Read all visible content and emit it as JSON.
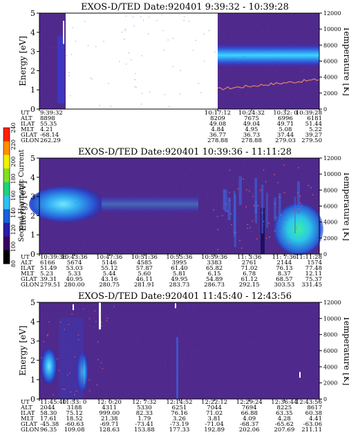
{
  "chart_data": [
    {
      "type": "heatmap",
      "title": "EXOS-D/TED   Date:920401   9:39:32 - 10:39:28",
      "ylabel": "Energy [eV]",
      "ylabel_right": "Temperature [K]",
      "ylim": [
        0,
        5
      ],
      "yticks": [
        "0",
        "1",
        "2",
        "3",
        "4",
        "5"
      ],
      "ylim_right": [
        0,
        12000
      ],
      "yticks_right": [
        "0",
        "2000",
        "4000",
        "6000",
        "8000",
        "10000",
        "12000"
      ],
      "data_gap": "white gap between 9:43 and 10:17 UT",
      "band_energy_ev": 2.8,
      "temperature_trace": [
        [
          10.285,
          2500
        ],
        [
          10.66,
          3700
        ]
      ],
      "ephemeris": {
        "row_labels": [
          "UT",
          "ALT",
          "ILAT",
          "MLT",
          "GLAT",
          "GLON"
        ],
        "columns": [
          [
            "9:39:32",
            "8898",
            "55.35",
            "4.21",
            "-68.14",
            "262.29"
          ],
          [
            "10:17:12",
            "8209",
            "49.08",
            "4.84",
            "36.77",
            "278.88"
          ],
          [
            "10:24:32",
            "7675",
            "49.04",
            "4.95",
            "36.73",
            "278.88"
          ],
          [
            "10:32: 0",
            "6996",
            "49.71",
            "5.08",
            "37.44",
            "279.03"
          ],
          [
            "10:39:28",
            "6181",
            "51.44",
            "5.22",
            "39.27",
            "279.50"
          ]
        ]
      }
    },
    {
      "type": "heatmap",
      "title": "EXOS-D/TED   Date:920401   10:39:36 - 11:11:28",
      "ylabel": "Energy [eV]",
      "ylabel_right": "Temperature [K]",
      "ylim": [
        0,
        5
      ],
      "yticks": [
        "0",
        "1",
        "2",
        "3",
        "4",
        "5"
      ],
      "ylim_right": [
        0,
        12000
      ],
      "yticks_right": [
        "0",
        "2000",
        "4000",
        "6000",
        "8000",
        "10000",
        "12000"
      ],
      "band_energy_ev": 2.6,
      "ephemeris": {
        "row_labels": [
          "UT",
          "ALT",
          "ILAT",
          "MLT",
          "GLAT",
          "GLON"
        ],
        "columns": [
          [
            "10:39:36",
            "6166",
            "51.49",
            "5.23",
            "39.31",
            "279.51"
          ],
          [
            "10:43:36",
            "5674",
            "53.03",
            "5.33",
            "40.95",
            "280.00"
          ],
          [
            "10:47:36",
            "5146",
            "55.12",
            "5.44",
            "43.16",
            "280.75"
          ],
          [
            "10:51:36",
            "4585",
            "57.87",
            "5.60",
            "46.11",
            "281.91"
          ],
          [
            "10:55:36",
            "3995",
            "61.40",
            "5.81",
            "49.95",
            "283.73"
          ],
          [
            "10:59:36",
            "3383",
            "65.82",
            "6.15",
            "54.89",
            "286.73"
          ],
          [
            "11: 3:36",
            "2761",
            "71.02",
            "6.78",
            "61.12",
            "292.15"
          ],
          [
            "11: 7:36",
            "2144",
            "76.13",
            "8.37",
            "68.57",
            "303.53"
          ],
          [
            "11:11:28",
            "1574",
            "77.48",
            "12.11",
            "75.37",
            "331.45"
          ]
        ]
      }
    },
    {
      "type": "heatmap",
      "title": "EXOS-D/TED   Date:920401   11:45:40 - 12:43:56",
      "ylabel": "Energy [eV]",
      "ylabel_right": "Temperature [K]",
      "ylim": [
        0,
        5
      ],
      "yticks": [
        "0",
        "1",
        "2",
        "3",
        "4",
        "5"
      ],
      "ylim_right": [
        0,
        12000
      ],
      "yticks_right": [
        "0",
        "2000",
        "4000",
        "6000",
        "8000",
        "10000",
        "12000"
      ],
      "ephemeris": {
        "row_labels": [
          "UT",
          "ALT",
          "ILAT",
          "MLT",
          "GLAT",
          "GLON"
        ],
        "columns": [
          [
            "11:45:40",
            "2044",
            "58.30",
            "17.61",
            "-45.38",
            "96.35"
          ],
          [
            "11:53: 0",
            "3188",
            "75.12",
            "18.52",
            "-60.63",
            "109.08"
          ],
          [
            "12: 0:20",
            "4311",
            "999.00",
            "21.38",
            "-69.71",
            "128.63"
          ],
          [
            "12: 7:32",
            "5330",
            "82.33",
            "1.79",
            "-73.41",
            "153.88"
          ],
          [
            "12:14:52",
            "6251",
            "76.16",
            "3.26",
            "-73.19",
            "177.33"
          ],
          [
            "12:22:12",
            "7044",
            "71.02",
            "3.81",
            "-71.04",
            "192.89"
          ],
          [
            "12:29:24",
            "7694",
            "66.88",
            "4.09",
            "-68.37",
            "202.06"
          ],
          [
            "12:36:44",
            "8225",
            "63.35",
            "4.28",
            "-65.62",
            "207.69"
          ],
          [
            "12:43:56",
            "8617",
            "60.38",
            "4.41",
            "-63.06",
            "211.11"
          ]
        ]
      }
    }
  ],
  "colorbar": {
    "label": "Second Harmonic Current",
    "ticks": [
      "80",
      "100",
      "120",
      "140",
      "160",
      "180",
      "200",
      "220",
      "240"
    ],
    "colors": [
      "#000000",
      "#3a0060",
      "#2a1aa8",
      "#1b5fd8",
      "#2fc0f0",
      "#1fd07a",
      "#7fe020",
      "#f0f000",
      "#ff9000",
      "#ff2000"
    ]
  }
}
